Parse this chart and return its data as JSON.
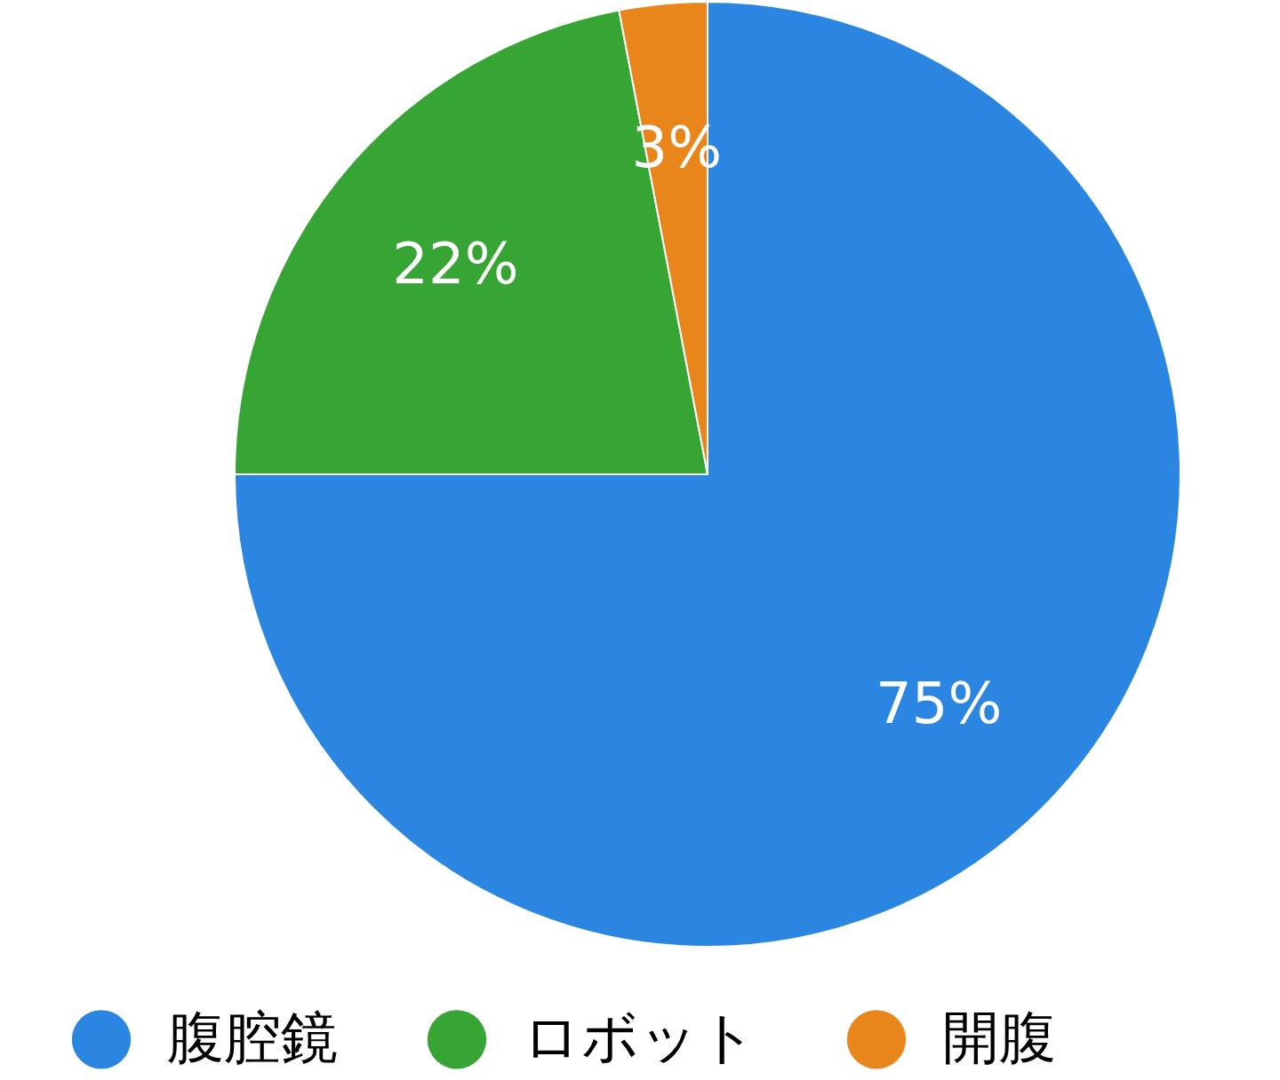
{
  "chart_data": {
    "type": "pie",
    "categories": [
      "腹腔鏡",
      "ロボット",
      "開腹"
    ],
    "values": [
      75,
      22,
      3
    ],
    "colors": [
      "#2a86e0",
      "#36a534",
      "#e8861c"
    ],
    "value_labels": [
      "75%",
      "22%",
      "3%"
    ],
    "legend": "bottom"
  }
}
